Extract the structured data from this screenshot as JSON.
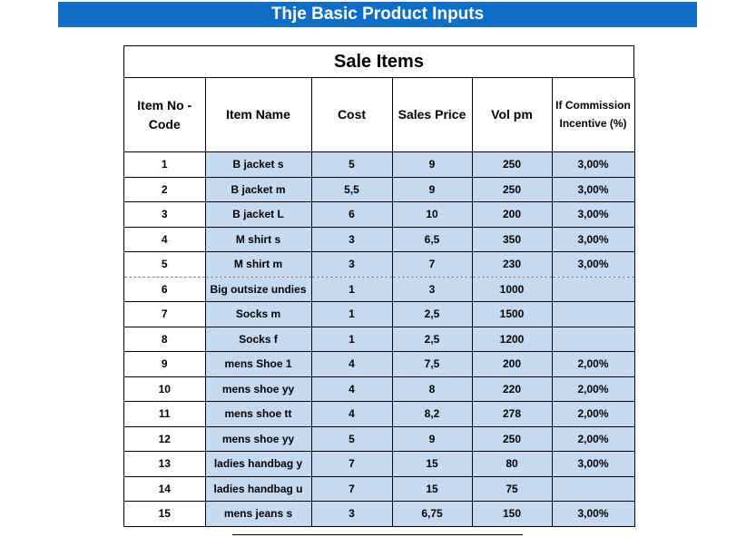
{
  "banner": {
    "title": "Thje Basic Product Inputs"
  },
  "table": {
    "title": "Sale Items",
    "headers": [
      "Item No - Code",
      "Item Name",
      "Cost",
      "Sales Price",
      "Vol pm",
      "If Commission Incentive (%)"
    ],
    "rows": [
      [
        "1",
        "B jacket s",
        "5",
        "9",
        "250",
        "3,00%"
      ],
      [
        "2",
        "B jacket m",
        "5,5",
        "9",
        "250",
        "3,00%"
      ],
      [
        "3",
        "B jacket L",
        "6",
        "10",
        "200",
        "3,00%"
      ],
      [
        "4",
        "M shirt s",
        "3",
        "6,5",
        "350",
        "3,00%"
      ],
      [
        "5",
        "M shirt m",
        "3",
        "7",
        "230",
        "3,00%"
      ],
      [
        "6",
        "Big outsize undies",
        "1",
        "3",
        "1000",
        ""
      ],
      [
        "7",
        "Socks m",
        "1",
        "2,5",
        "1500",
        ""
      ],
      [
        "8",
        "Socks f",
        "1",
        "2,5",
        "1200",
        ""
      ],
      [
        "9",
        "mens Shoe 1",
        "4",
        "7,5",
        "200",
        "2,00%"
      ],
      [
        "10",
        "mens shoe yy",
        "4",
        "8",
        "220",
        "2,00%"
      ],
      [
        "11",
        "mens shoe tt",
        "4",
        "8,2",
        "278",
        "2,00%"
      ],
      [
        "12",
        "mens shoe yy",
        "5",
        "9",
        "250",
        "2,00%"
      ],
      [
        "13",
        "ladies handbag y",
        "7",
        "15",
        "80",
        "3,00%"
      ],
      [
        "14",
        "ladies handbag u",
        "7",
        "15",
        "75",
        ""
      ],
      [
        "15",
        "mens jeans s",
        "3",
        "6,75",
        "150",
        "3,00%"
      ]
    ]
  },
  "colors": {
    "banner": "#0f6fc6",
    "cell_fill": "#c5d9f1"
  }
}
